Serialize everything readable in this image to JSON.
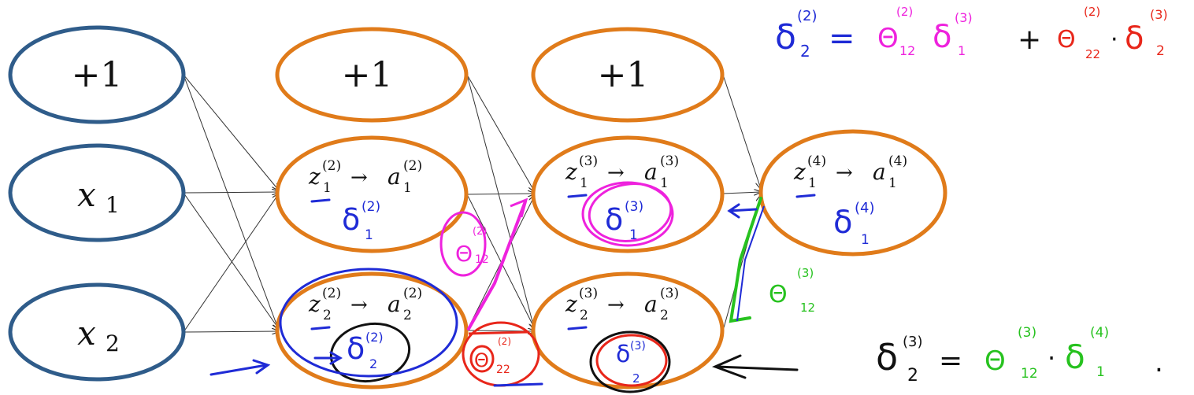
{
  "colors": {
    "input_node": "#2f5c8a",
    "hidden_node": "#e07b1a",
    "edge": "#333333",
    "ink_blue": "#1f2bd6",
    "ink_magenta": "#ee22dd",
    "ink_red": "#e8261a",
    "ink_green": "#27c21f",
    "ink_black": "#111111"
  },
  "nodes": {
    "input_bias": "+1",
    "input_x1": "x",
    "input_x1_sub": "1",
    "input_x2": "x",
    "input_x2_sub": "2",
    "l2_bias": "+1",
    "l3_bias": "+1",
    "l2_n1_z": "z",
    "l2_n1_z_sup": "(2)",
    "l2_n1_z_sub": "1",
    "l2_n1_arrow": "→",
    "l2_n1_a": "a",
    "l2_n1_a_sup": "(2)",
    "l2_n1_a_sub": "1",
    "l2_n2_z": "z",
    "l2_n2_z_sup": "(2)",
    "l2_n2_z_sub": "2",
    "l2_n2_arrow": "→",
    "l2_n2_a": "a",
    "l2_n2_a_sup": "(2)",
    "l2_n2_a_sub": "2",
    "l3_n1_z": "z",
    "l3_n1_z_sup": "(3)",
    "l3_n1_z_sub": "1",
    "l3_n1_arrow": "→",
    "l3_n1_a": "a",
    "l3_n1_a_sup": "(3)",
    "l3_n1_a_sub": "1",
    "l3_n2_z": "z",
    "l3_n2_z_sup": "(3)",
    "l3_n2_z_sub": "2",
    "l3_n2_arrow": "→",
    "l3_n2_a": "a",
    "l3_n2_a_sup": "(3)",
    "l3_n2_a_sub": "2",
    "l4_n1_z": "z",
    "l4_n1_z_sup": "(4)",
    "l4_n1_z_sub": "1",
    "l4_n1_arrow": "→",
    "l4_n1_a": "a",
    "l4_n1_a_sup": "(4)",
    "l4_n1_a_sub": "1"
  },
  "annotations": {
    "delta": "δ",
    "theta": "Θ",
    "plus": "+",
    "equals": "=",
    "dot": "·",
    "period": ".",
    "l2_n1_delta_sup": "(2)",
    "l2_n1_delta_sub": "1",
    "l2_n2_delta_sup": "(2)",
    "l2_n2_delta_sub": "2",
    "l3_n1_delta_sup": "(3)",
    "l3_n1_delta_sub": "1",
    "l3_n2_delta_sup": "(3)",
    "l3_n2_delta_sub": "2",
    "l4_n1_delta_sup": "(4)",
    "l4_n1_delta_sub": "1",
    "magenta_theta_sup": "(2)",
    "magenta_theta_sub": "12",
    "red_theta_sup": "(2)",
    "red_theta_sub": "22",
    "green_theta_sup": "(3)",
    "green_theta_sub": "12",
    "eq1_lhs_sup": "(2)",
    "eq1_lhs_sub": "2",
    "eq1_t1_sup": "(2)",
    "eq1_t1_sub": "12",
    "eq1_d1_sup": "(3)",
    "eq1_d1_sub": "1",
    "eq1_t2_sup": "(2)",
    "eq1_t2_sub": "22",
    "eq1_d2_sup": "(3)",
    "eq1_d2_sub": "2",
    "eq2_lhs_sup": "(3)",
    "eq2_lhs_sub": "2",
    "eq2_t_sup": "(3)",
    "eq2_t_sub": "12",
    "eq2_d_sup": "(4)",
    "eq2_d_sub": "1"
  }
}
